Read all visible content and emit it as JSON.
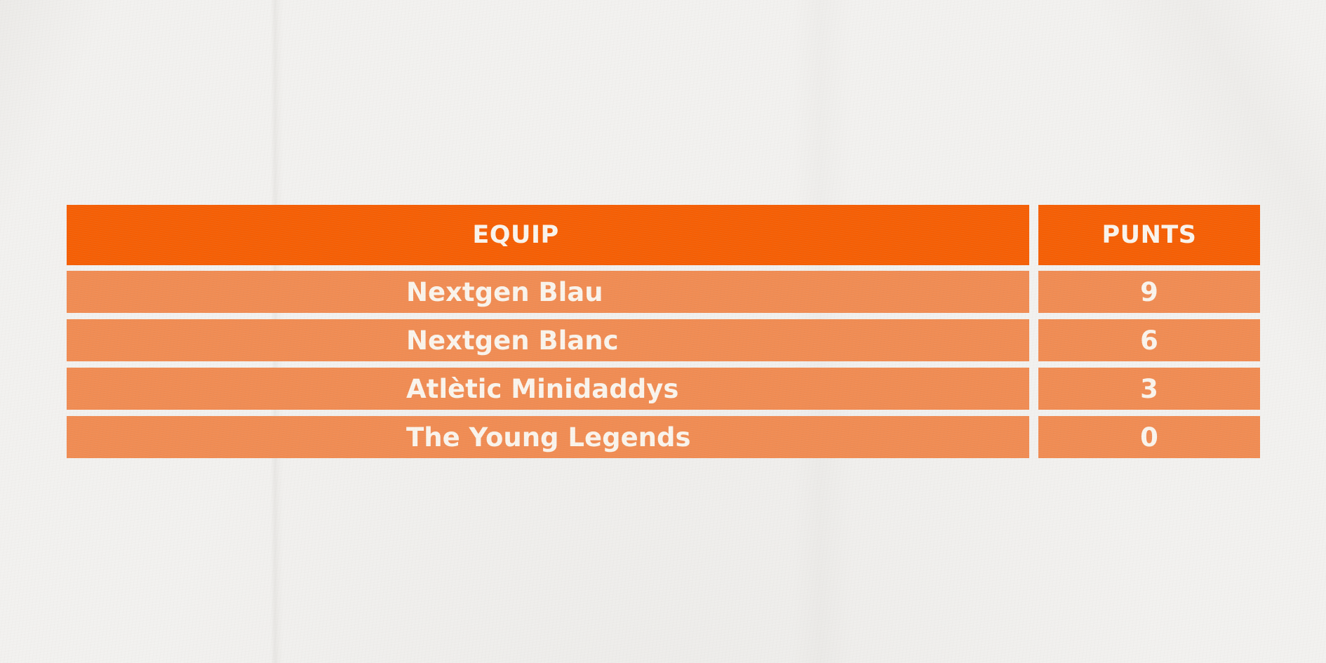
{
  "chart_data": {
    "type": "table",
    "columns": [
      "EQUIP",
      "PUNTS"
    ],
    "rows": [
      [
        "Nextgen Blau",
        9
      ],
      [
        "Nextgen Blanc",
        6
      ],
      [
        "Atlètic Minidaddys",
        3
      ],
      [
        "The Young Legends",
        0
      ]
    ],
    "layout": {
      "legend": "none",
      "grid": "off",
      "style": "rows separated by paper-background gaps, two columns split by a vertical gap"
    }
  },
  "colors": {
    "header_bg": "#F55E03",
    "row_bg": "#F08B52",
    "text": "#FAF4EC",
    "page_bg": "#F2F1EF"
  }
}
